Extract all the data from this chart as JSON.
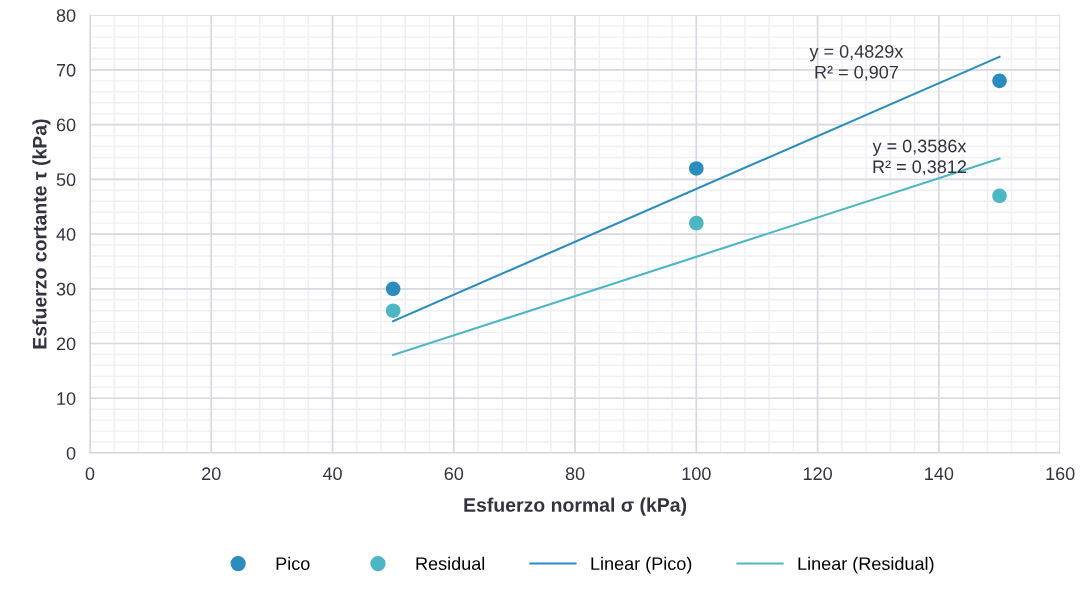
{
  "chart_data": {
    "type": "scatter",
    "xlabel": "Esfuerzo normal σ (kPa)",
    "ylabel": "Esfuerzo cortante τ (kPa)",
    "series": [
      {
        "name": "Pico",
        "marker": "circle",
        "color": "#2b8cbe",
        "x": [
          50,
          100,
          150
        ],
        "values": [
          30,
          52,
          68
        ]
      },
      {
        "name": "Residual",
        "marker": "circle",
        "color": "#4cb6c2",
        "x": [
          50,
          100,
          150
        ],
        "values": [
          26,
          42,
          47
        ]
      },
      {
        "name": "Linear (Pico)",
        "type": "line",
        "marker": "none",
        "color": "#2b8cbe",
        "x": [
          50,
          150
        ],
        "values": [
          24.1,
          72.4
        ]
      },
      {
        "name": "Linear (Residual)",
        "type": "line",
        "marker": "none",
        "color": "#4cb6c2",
        "x": [
          50,
          150
        ],
        "values": [
          17.9,
          53.8
        ]
      }
    ],
    "annotations": [
      "y = 0,4829x\nR² = 0,907",
      "y = 0,3586x\nR² = 0,3812"
    ],
    "xlim": [
      0,
      160
    ],
    "xticks": [
      0,
      20,
      40,
      60,
      80,
      100,
      120,
      140,
      160
    ],
    "ylim": [
      0,
      80
    ],
    "yticks": [
      0,
      10,
      20,
      30,
      40,
      50,
      60,
      70,
      80
    ],
    "grid": true,
    "legend": "bottom",
    "line_style": "solid"
  }
}
